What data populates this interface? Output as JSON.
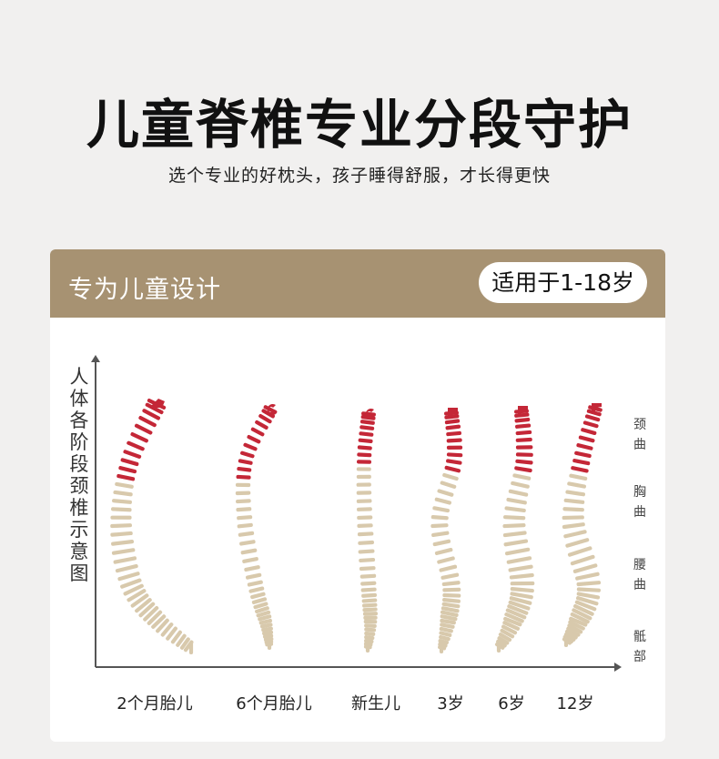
{
  "header": {
    "title": "儿童脊椎专业分段守护",
    "subtitle": "选个专业的好枕头，孩子睡得舒服，才长得更快"
  },
  "card": {
    "title": "专为儿童设计",
    "age_badge": "适用于1-18岁",
    "y_axis_label": "人体各阶段颈椎示意图",
    "regions": [
      "颈曲",
      "胸曲",
      "腰曲",
      "骶部"
    ],
    "stages": [
      "2个月胎儿",
      "6个月胎儿",
      "新生儿",
      "3岁",
      "6岁",
      "12岁"
    ]
  },
  "colors": {
    "header_bg": "#a79272",
    "cervical": "#c42737",
    "vertebra": "#d8c9ac"
  },
  "icons": [
    "spine-illustration-icon"
  ]
}
